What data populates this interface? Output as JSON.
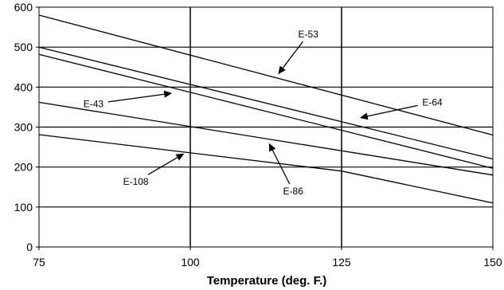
{
  "chart_data": {
    "type": "line",
    "title": "",
    "xlabel": "Temperature (deg. F.)",
    "ylabel": "",
    "xlim": [
      75,
      150
    ],
    "ylim": [
      0,
      600
    ],
    "xticks": [
      75,
      100,
      125,
      150
    ],
    "yticks": [
      0,
      100,
      200,
      300,
      400,
      500,
      600
    ],
    "grid": true,
    "legend": "none",
    "series_color": "#000000",
    "series": [
      {
        "name": "E-53",
        "x": [
          75,
          150
        ],
        "y": [
          580,
          280
        ]
      },
      {
        "name": "E-43",
        "x": [
          75,
          150
        ],
        "y": [
          500,
          220
        ]
      },
      {
        "name": "E-64",
        "x": [
          75,
          150
        ],
        "y": [
          482,
          197
        ]
      },
      {
        "name": "E-86",
        "x": [
          75,
          150
        ],
        "y": [
          362,
          180
        ]
      },
      {
        "name": "E-108",
        "x": [
          75,
          125,
          150
        ],
        "y": [
          281,
          190,
          110
        ]
      }
    ],
    "annotations": [
      {
        "label": "E-53",
        "text_x": 119.5,
        "text_y": 532,
        "arrow_x": 114.5,
        "arrow_y": 432
      },
      {
        "label": "E-43",
        "text_x": 84,
        "text_y": 358,
        "arrow_x": 97,
        "arrow_y": 385
      },
      {
        "label": "E-64",
        "text_x": 140,
        "text_y": 362,
        "arrow_x": 128,
        "arrow_y": 323
      },
      {
        "label": "E-86",
        "text_x": 117,
        "text_y": 140,
        "arrow_x": 113,
        "arrow_y": 260
      },
      {
        "label": "E-108",
        "text_x": 91,
        "text_y": 163,
        "arrow_x": 99,
        "arrow_y": 234
      }
    ]
  }
}
